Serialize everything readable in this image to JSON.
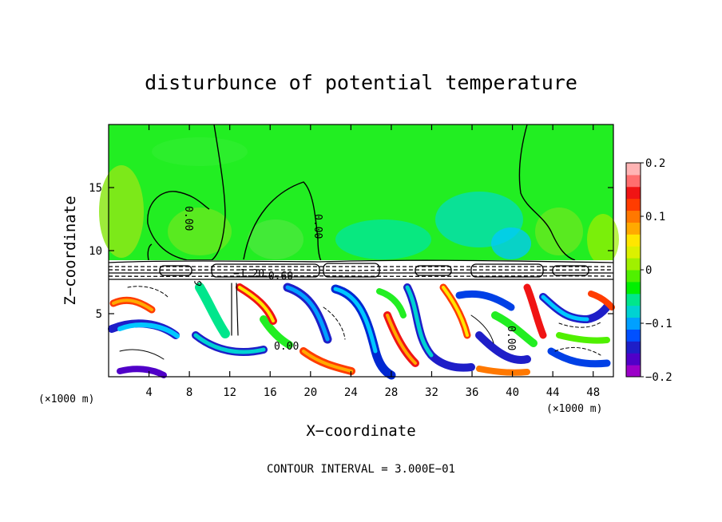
{
  "chart_data": {
    "type": "heatmap",
    "title": "disturbunce of potential temperature",
    "xlabel": "X−coordinate",
    "ylabel": "Z−coordinate",
    "x_unit": "(×1000 m)",
    "x_unit_right": "(×1000 m)",
    "xlim": [
      0,
      50
    ],
    "ylim": [
      0,
      20
    ],
    "x_ticks": [
      4,
      8,
      12,
      16,
      20,
      24,
      28,
      32,
      36,
      40,
      44,
      48
    ],
    "x_tick_labels": [
      "4",
      "8",
      "12",
      "16",
      "20",
      "24",
      "28",
      "32",
      "36",
      "40",
      "44",
      "48"
    ],
    "y_ticks": [
      5,
      10,
      15
    ],
    "y_tick_labels": [
      "5",
      "10",
      "15"
    ],
    "colorbar": {
      "range": [
        -0.2,
        0.2
      ],
      "ticks": [
        0.2,
        0.1,
        0,
        -0.1,
        -0.2
      ],
      "tick_labels": [
        "0.2",
        "0.1",
        "0",
        "−0.1",
        "−0.2"
      ],
      "colors": [
        "#9b00c8",
        "#5000c8",
        "#1e1ec8",
        "#0050ff",
        "#00a0ff",
        "#00d2d2",
        "#00e68c",
        "#00f000",
        "#50f000",
        "#a0f000",
        "#dcf000",
        "#ffe600",
        "#ffaa00",
        "#ff7800",
        "#ff3c00",
        "#f01414",
        "#ff6e6e",
        "#ffb4b4"
      ]
    },
    "contour_labels": [
      "0.00",
      "0.00",
      "−1.20",
      "−0.60",
      "0.00",
      "0.00",
      "0.00"
    ],
    "contour_interval_text": "CONTOUR INTERVAL = 3.000E−01"
  }
}
